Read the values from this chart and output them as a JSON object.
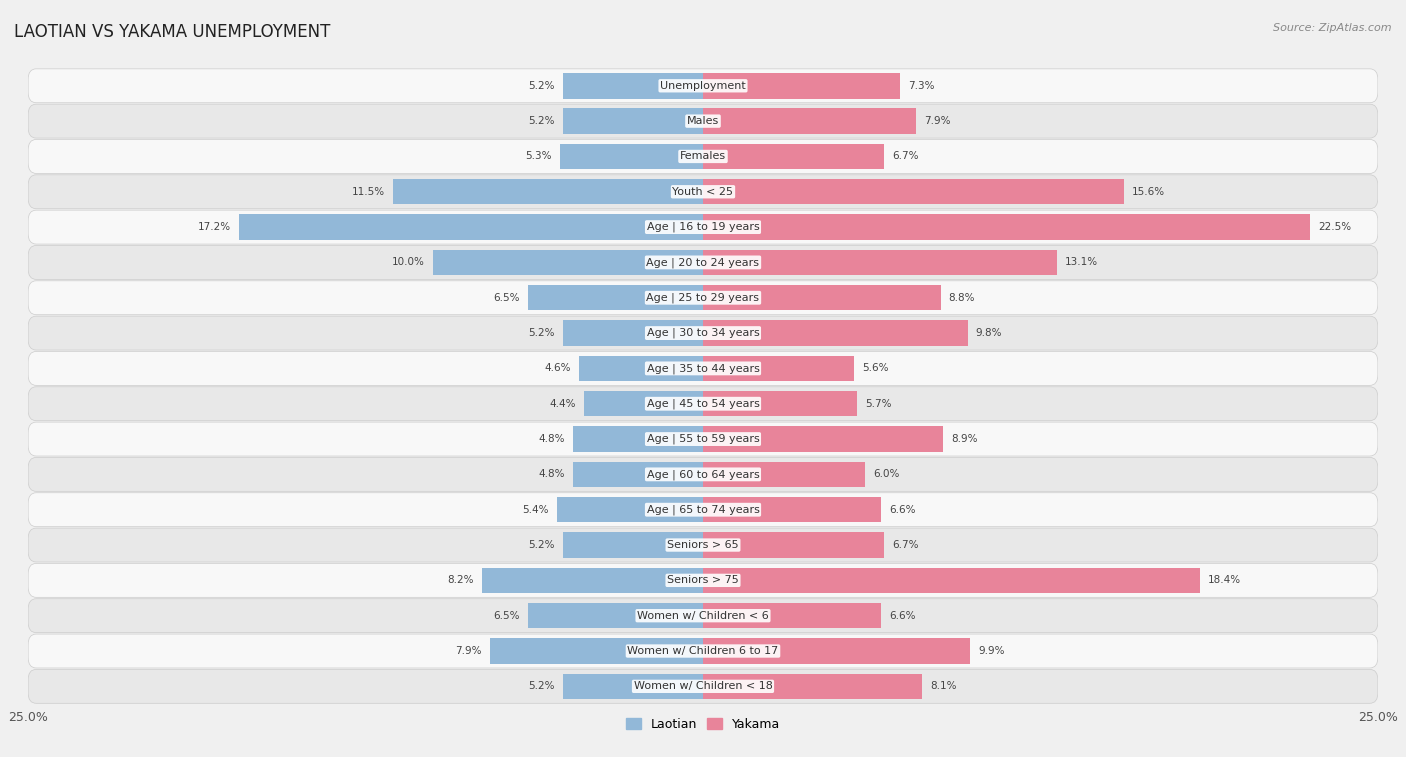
{
  "title": "LAOTIAN VS YAKAMA UNEMPLOYMENT",
  "source": "Source: ZipAtlas.com",
  "categories": [
    "Unemployment",
    "Males",
    "Females",
    "Youth < 25",
    "Age | 16 to 19 years",
    "Age | 20 to 24 years",
    "Age | 25 to 29 years",
    "Age | 30 to 34 years",
    "Age | 35 to 44 years",
    "Age | 45 to 54 years",
    "Age | 55 to 59 years",
    "Age | 60 to 64 years",
    "Age | 65 to 74 years",
    "Seniors > 65",
    "Seniors > 75",
    "Women w/ Children < 6",
    "Women w/ Children 6 to 17",
    "Women w/ Children < 18"
  ],
  "laotian": [
    5.2,
    5.2,
    5.3,
    11.5,
    17.2,
    10.0,
    6.5,
    5.2,
    4.6,
    4.4,
    4.8,
    4.8,
    5.4,
    5.2,
    8.2,
    6.5,
    7.9,
    5.2
  ],
  "yakama": [
    7.3,
    7.9,
    6.7,
    15.6,
    22.5,
    13.1,
    8.8,
    9.8,
    5.6,
    5.7,
    8.9,
    6.0,
    6.6,
    6.7,
    18.4,
    6.6,
    9.9,
    8.1
  ],
  "laotian_color": "#92b8d8",
  "yakama_color": "#e8849a",
  "laotian_label": "Laotian",
  "yakama_label": "Yakama",
  "axis_limit": 25.0,
  "bar_height": 0.72,
  "bg_color": "#f0f0f0",
  "row_color_even": "#f8f8f8",
  "row_color_odd": "#e8e8e8",
  "title_fontsize": 12,
  "label_fontsize": 8,
  "value_fontsize": 7.5,
  "legend_fontsize": 9
}
